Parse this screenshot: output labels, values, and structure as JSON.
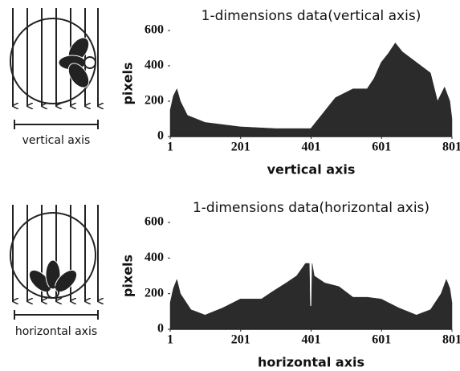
{
  "chart_data": [
    {
      "type": "area",
      "title": "1-dimensions data(vertical axis)",
      "xlabel": "vertical axis",
      "ylabel": "pixels",
      "x": [
        1,
        10,
        20,
        30,
        50,
        100,
        200,
        300,
        400,
        430,
        470,
        500,
        520,
        560,
        580,
        600,
        620,
        640,
        660,
        700,
        740,
        760,
        780,
        795,
        801
      ],
      "values": [
        150,
        230,
        270,
        200,
        120,
        80,
        55,
        45,
        45,
        120,
        220,
        250,
        270,
        270,
        330,
        420,
        470,
        530,
        480,
        420,
        360,
        200,
        280,
        200,
        100
      ],
      "color": "#2b2b2b",
      "xlim": [
        1,
        801
      ],
      "ylim": [
        0,
        600
      ],
      "xticks": [
        1,
        201,
        401,
        601,
        801
      ],
      "yticks": [
        0,
        200,
        400,
        600
      ],
      "grid": false
    },
    {
      "type": "area",
      "title": "1-dimensions data(horizontal axis)",
      "xlabel": "horizontal axis",
      "ylabel": "pixels",
      "x": [
        1,
        10,
        20,
        30,
        60,
        100,
        150,
        200,
        260,
        290,
        330,
        360,
        385,
        396,
        398,
        402,
        404,
        410,
        440,
        480,
        520,
        560,
        600,
        650,
        700,
        740,
        770,
        785,
        795,
        801
      ],
      "values": [
        150,
        230,
        280,
        200,
        110,
        80,
        120,
        170,
        170,
        210,
        260,
        300,
        370,
        370,
        130,
        130,
        370,
        300,
        260,
        240,
        180,
        180,
        170,
        120,
        80,
        110,
        200,
        280,
        230,
        150
      ],
      "color": "#2b2b2b",
      "xlim": [
        1,
        801
      ],
      "ylim": [
        0,
        600
      ],
      "xticks": [
        1,
        201,
        401,
        601,
        801
      ],
      "yticks": [
        0,
        200,
        400,
        600
      ],
      "grid": false
    }
  ],
  "diagrams": [
    {
      "label": "vertical axis"
    },
    {
      "label": "horizontal axis"
    }
  ]
}
